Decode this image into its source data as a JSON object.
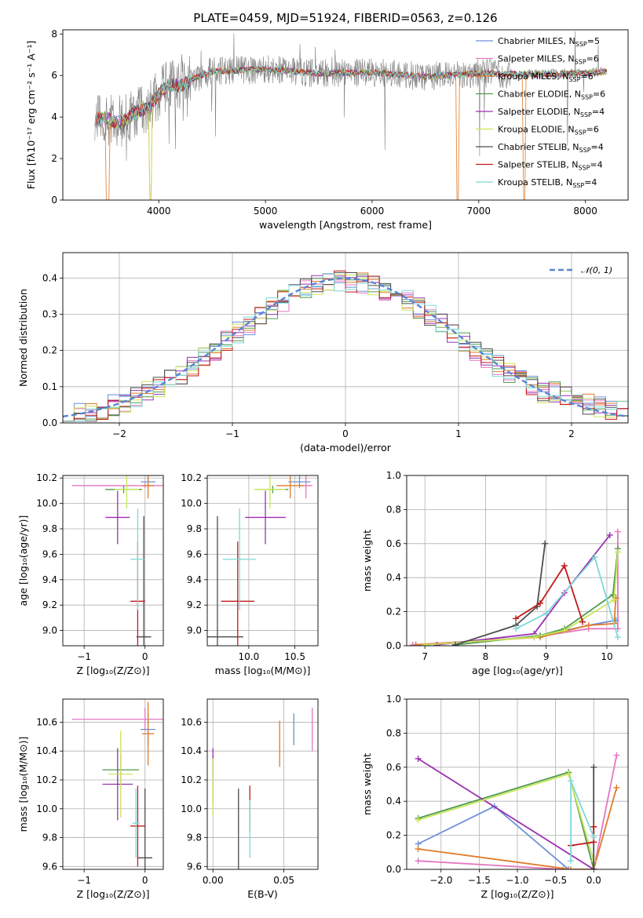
{
  "figure_title": "PLATE=0459, MJD=51924, FIBERID=0563, z=0.126",
  "models": [
    {
      "name": "Chabrier MILES, N",
      "sub": "SSP",
      "eq": "=5",
      "color": "#6b8fd6"
    },
    {
      "name": "Salpeter MILES, N",
      "sub": "SSP",
      "eq": "=6",
      "color": "#e377c2"
    },
    {
      "name": "Kroupa MILES, N",
      "sub": "SSP",
      "eq": "=6",
      "color": "#e07b2a"
    },
    {
      "name": "Chabrier ELODIE, N",
      "sub": "SSP",
      "eq": "=6",
      "color": "#4f9a4f"
    },
    {
      "name": "Salpeter ELODIE, N",
      "sub": "SSP",
      "eq": "=4",
      "color": "#9b30b0"
    },
    {
      "name": "Kroupa ELODIE, N",
      "sub": "SSP",
      "eq": "=6",
      "color": "#c8e65a"
    },
    {
      "name": "Chabrier STELIB, N",
      "sub": "SSP",
      "eq": "=4",
      "color": "#4d4d4d"
    },
    {
      "name": "Salpeter STELIB, N",
      "sub": "SSP",
      "eq": "=4",
      "color": "#c41a1a"
    },
    {
      "name": "Kroupa STELIB, N",
      "sub": "SSP",
      "eq": "=4",
      "color": "#7fd8d8"
    }
  ],
  "chart_data": [
    {
      "type": "line",
      "id": "spectrum",
      "title": "PLATE=0459, MJD=51924, FIBERID=0563, z=0.126",
      "xlabel": "wavelength [Angstrom, rest frame]",
      "ylabel": "Flux [f_λ 10^-17 erg cm^-2 s^-1 A^-1]",
      "xlim": [
        3100,
        8400
      ],
      "ylim": [
        0,
        8.2
      ],
      "xticks": [
        4000,
        5000,
        6000,
        7000,
        8000
      ],
      "yticks": [
        0,
        2,
        4,
        6,
        8
      ],
      "legend": "top-right",
      "continuum": [
        [
          3400,
          3.9
        ],
        [
          3500,
          3.95
        ],
        [
          3600,
          3.7
        ],
        [
          3700,
          3.9
        ],
        [
          3800,
          4.3
        ],
        [
          3900,
          4.4
        ],
        [
          4000,
          5.1
        ],
        [
          4100,
          5.6
        ],
        [
          4200,
          5.5
        ],
        [
          4300,
          5.8
        ],
        [
          4500,
          6.2
        ],
        [
          5000,
          6.3
        ],
        [
          5500,
          6.1
        ],
        [
          6000,
          6.15
        ],
        [
          6500,
          5.95
        ],
        [
          7000,
          6.1
        ],
        [
          7500,
          6.05
        ],
        [
          8000,
          6.1
        ],
        [
          8200,
          6.2
        ]
      ]
    },
    {
      "type": "bar",
      "id": "residual-histogram",
      "xlabel": "(data-model)/error",
      "ylabel": "Normed distribution",
      "xlim": [
        -2.5,
        2.5
      ],
      "ylim": [
        0,
        0.47
      ],
      "xticks": [
        -2,
        -1,
        0,
        1,
        2
      ],
      "yticks": [
        0.0,
        0.1,
        0.2,
        0.3,
        0.4
      ],
      "grid": true,
      "bin_width": 0.1,
      "reference": {
        "name": "𝒩(0, 1)",
        "mean": 0,
        "sigma": 1,
        "color": "#5b84d4"
      },
      "legend": "top-right"
    },
    {
      "type": "scatter",
      "id": "age-vs-z",
      "xlabel": "Z [log10(Z/Z⊙)]",
      "ylabel": "age [log10(age/yr)]",
      "xlim": [
        -1.35,
        0.3
      ],
      "ylim": [
        8.88,
        10.22
      ],
      "xticks": [
        -1,
        0
      ],
      "yticks": [
        9.0,
        9.2,
        9.4,
        9.6,
        9.8,
        10.0,
        10.2
      ],
      "grid": true,
      "points": [
        {
          "x": 0.05,
          "y": 10.17,
          "xerr": 0.12,
          "yerr": 0.05
        },
        {
          "x": 0.0,
          "y": 10.14,
          "xerr": 1.2,
          "yerr": 0.02
        },
        {
          "x": 0.05,
          "y": 10.14,
          "xerr": 0.1,
          "yerr": 0.1
        },
        {
          "x": -0.35,
          "y": 10.11,
          "xerr": 0.3,
          "yerr": 0.03
        },
        {
          "x": -0.45,
          "y": 9.89,
          "xerr": 0.2,
          "yerr": 0.21
        },
        {
          "x": -0.3,
          "y": 10.11,
          "xerr": 0.2,
          "yerr": 0.15
        },
        {
          "x": -0.02,
          "y": 8.95,
          "xerr": 0.12,
          "yerr": 0.95
        },
        {
          "x": -0.12,
          "y": 9.23,
          "xerr": 0.12,
          "yerr": 0.47
        },
        {
          "x": -0.12,
          "y": 9.56,
          "xerr": 0.12,
          "yerr": 0.4
        }
      ]
    },
    {
      "type": "scatter",
      "id": "age-vs-mass",
      "xlabel": "mass [log10(M/M⊙)]",
      "ylabel": "",
      "xlim": [
        9.55,
        10.75
      ],
      "ylim": [
        8.88,
        10.22
      ],
      "xticks": [
        10.0,
        10.5
      ],
      "yticks": [
        9.0,
        9.2,
        9.4,
        9.6,
        9.8,
        10.0,
        10.2
      ],
      "grid": true,
      "points": [
        {
          "x": 10.55,
          "y": 10.17,
          "xerr": 0.12,
          "yerr": 0.05
        },
        {
          "x": 10.62,
          "y": 10.14,
          "xerr": 0.07,
          "yerr": 0.1
        },
        {
          "x": 10.45,
          "y": 10.14,
          "xerr": 0.15,
          "yerr": 0.1
        },
        {
          "x": 10.26,
          "y": 10.11,
          "xerr": 0.17,
          "yerr": 0.03
        },
        {
          "x": 10.18,
          "y": 9.89,
          "xerr": 0.22,
          "yerr": 0.21
        },
        {
          "x": 10.23,
          "y": 10.11,
          "xerr": 0.17,
          "yerr": 0.15
        },
        {
          "x": 9.66,
          "y": 8.95,
          "xerr": 0.28,
          "yerr": 0.95
        },
        {
          "x": 9.88,
          "y": 9.23,
          "xerr": 0.18,
          "yerr": 0.47
        },
        {
          "x": 9.9,
          "y": 9.56,
          "xerr": 0.18,
          "yerr": 0.4
        }
      ]
    },
    {
      "type": "line",
      "id": "weight-vs-age",
      "xlabel": "age [log10(age/yr)]",
      "ylabel": "mass weight",
      "xlim": [
        6.7,
        10.35
      ],
      "ylim": [
        0,
        1.0
      ],
      "xticks": [
        7,
        8,
        9,
        10
      ],
      "yticks": [
        0.0,
        0.2,
        0.4,
        0.6,
        0.8,
        1.0
      ],
      "grid": true,
      "series": [
        {
          "x": [
            6.85,
            8.8,
            9.7,
            10.15
          ],
          "y": [
            0.005,
            0.05,
            0.12,
            0.15
          ]
        },
        {
          "x": [
            6.8,
            8.8,
            9.7,
            10.18,
            10.18
          ],
          "y": [
            0.005,
            0.05,
            0.1,
            0.1,
            0.67
          ]
        },
        {
          "x": [
            6.85,
            8.9,
            9.7,
            10.12,
            10.15
          ],
          "y": [
            0.005,
            0.05,
            0.12,
            0.13,
            0.28
          ]
        },
        {
          "x": [
            7.5,
            8.9,
            9.3,
            10.1,
            10.18
          ],
          "y": [
            0.005,
            0.06,
            0.1,
            0.3,
            0.57
          ]
        },
        {
          "x": [
            7.2,
            8.8,
            9.3,
            10.05
          ],
          "y": [
            0.005,
            0.07,
            0.31,
            0.65
          ]
        },
        {
          "x": [
            7.0,
            8.8,
            9.3,
            10.12,
            10.18
          ],
          "y": [
            0.005,
            0.05,
            0.09,
            0.27,
            0.55
          ]
        },
        {
          "x": [
            7.5,
            8.5,
            8.85,
            8.98
          ],
          "y": [
            0.005,
            0.12,
            0.23,
            0.6
          ]
        },
        {
          "x": [
            8.5,
            8.9,
            9.3,
            9.6
          ],
          "y": [
            0.16,
            0.25,
            0.47,
            0.14
          ]
        },
        {
          "x": [
            8.5,
            9.0,
            9.8,
            10.18
          ],
          "y": [
            0.1,
            0.19,
            0.52,
            0.05
          ]
        }
      ]
    },
    {
      "type": "scatter",
      "id": "mass-vs-z",
      "xlabel": "Z [log10(Z/Z⊙)]",
      "ylabel": "mass [log10(M/M⊙)]",
      "xlim": [
        -1.35,
        0.3
      ],
      "ylim": [
        9.58,
        10.76
      ],
      "xticks": [
        -1,
        0
      ],
      "yticks": [
        9.6,
        9.8,
        10.0,
        10.2,
        10.4,
        10.6
      ],
      "grid": true,
      "points": [
        {
          "x": 0.05,
          "y": 10.55,
          "xerr": 0.12,
          "yerr": 0.11
        },
        {
          "x": 0.0,
          "y": 10.62,
          "xerr": 1.2,
          "yerr": 0.08
        },
        {
          "x": 0.05,
          "y": 10.52,
          "xerr": 0.1,
          "yerr": 0.22
        },
        {
          "x": -0.4,
          "y": 10.27,
          "xerr": 0.3,
          "yerr": 0.11
        },
        {
          "x": -0.45,
          "y": 10.17,
          "xerr": 0.25,
          "yerr": 0.25
        },
        {
          "x": -0.4,
          "y": 10.24,
          "xerr": 0.2,
          "yerr": 0.3
        },
        {
          "x": 0.0,
          "y": 9.66,
          "xerr": 0.12,
          "yerr": 0.48
        },
        {
          "x": -0.12,
          "y": 9.88,
          "xerr": 0.12,
          "yerr": 0.28
        },
        {
          "x": -0.15,
          "y": 9.9,
          "xerr": 0.06,
          "yerr": 0.24
        }
      ]
    },
    {
      "type": "scatter",
      "id": "mass-vs-ebv",
      "xlabel": "E(B-V)",
      "ylabel": "",
      "xlim": [
        -0.004,
        0.074
      ],
      "ylim": [
        9.58,
        10.76
      ],
      "xticks": [
        0.0,
        0.05
      ],
      "yticks": [
        9.6,
        9.8,
        10.0,
        10.2,
        10.4,
        10.6
      ],
      "grid": true,
      "points": [
        {
          "x": 0.057,
          "y": 10.55,
          "yerr": 0.11
        },
        {
          "x": 0.07,
          "y": 10.55,
          "yerr": 0.15
        },
        {
          "x": 0.047,
          "y": 10.45,
          "yerr": 0.16
        },
        {
          "x": 0.0,
          "y": 10.2,
          "yerr": 0.17
        },
        {
          "x": 0.0,
          "y": 10.3,
          "yerr": 0.12
        },
        {
          "x": 0.0,
          "y": 10.15,
          "yerr": 0.2
        },
        {
          "x": 0.018,
          "y": 9.8,
          "yerr": 0.34
        },
        {
          "x": 0.026,
          "y": 10.0,
          "yerr": 0.16
        },
        {
          "x": 0.026,
          "y": 9.86,
          "yerr": 0.2
        }
      ]
    },
    {
      "type": "line",
      "id": "weight-vs-z",
      "xlabel": "Z [log10(Z/Z⊙)]",
      "ylabel": "mass weight",
      "xlim": [
        -2.45,
        0.45
      ],
      "ylim": [
        0,
        1.0
      ],
      "xticks": [
        -2.0,
        -1.5,
        -1.0,
        -0.5,
        0.0
      ],
      "yticks": [
        0.0,
        0.2,
        0.4,
        0.6,
        0.8,
        1.0
      ],
      "grid": true,
      "series": [
        {
          "x": [
            -2.3,
            -1.3,
            -0.33,
            0.0
          ],
          "y": [
            0.15,
            0.37,
            0.0,
            0.0
          ]
        },
        {
          "x": [
            -2.3,
            -0.4,
            0.0,
            0.3
          ],
          "y": [
            0.05,
            0.0,
            0.0,
            0.67
          ]
        },
        {
          "x": [
            -2.3,
            -0.3,
            0.0,
            0.3
          ],
          "y": [
            0.12,
            0.0,
            0.0,
            0.48
          ]
        },
        {
          "x": [
            -2.3,
            -0.33,
            0.0
          ],
          "y": [
            0.3,
            0.57,
            0.0
          ]
        },
        {
          "x": [
            -2.3,
            0.0
          ],
          "y": [
            0.65,
            0.0
          ]
        },
        {
          "x": [
            -2.3,
            -0.33,
            0.0
          ],
          "y": [
            0.29,
            0.56,
            0.05
          ]
        },
        {
          "x": [
            0.0,
            0.0
          ],
          "y": [
            0.0,
            0.6
          ]
        },
        {
          "x": [
            -0.3,
            0.0,
            0.0
          ],
          "y": [
            0.14,
            0.16,
            0.25
          ]
        },
        {
          "x": [
            -0.3,
            -0.3,
            0.0
          ],
          "y": [
            0.05,
            0.52,
            0.19
          ]
        }
      ]
    }
  ]
}
